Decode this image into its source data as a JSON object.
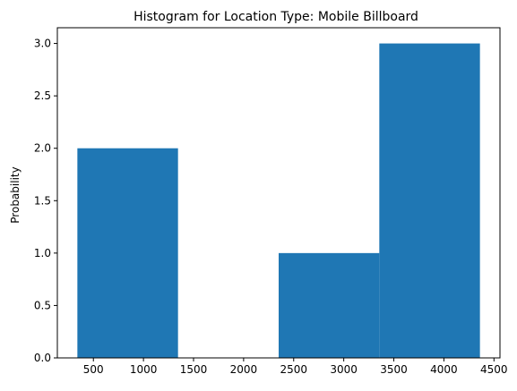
{
  "chart_data": {
    "type": "bar",
    "title": "Histogram for Location Type: Mobile Billboard",
    "xlabel": "",
    "ylabel": "Probability",
    "bins": [
      {
        "x0": 340,
        "x1": 1345,
        "value": 2
      },
      {
        "x0": 1345,
        "x1": 2350,
        "value": 0
      },
      {
        "x0": 2350,
        "x1": 3355,
        "value": 1
      },
      {
        "x0": 3355,
        "x1": 4360,
        "value": 3
      }
    ],
    "xlim": [
      140,
      4560
    ],
    "ylim": [
      0,
      3.15
    ],
    "xticks": [
      500,
      1000,
      1500,
      2000,
      2500,
      3000,
      3500,
      4000,
      4500
    ],
    "xtick_labels": [
      "500",
      "1000",
      "1500",
      "2000",
      "2500",
      "3000",
      "3500",
      "4000",
      "4500"
    ],
    "yticks": [
      0.0,
      0.5,
      1.0,
      1.5,
      2.0,
      2.5,
      3.0
    ],
    "ytick_labels": [
      "0.0",
      "0.5",
      "1.0",
      "1.5",
      "2.0",
      "2.5",
      "3.0"
    ],
    "bar_color": "#1f77b4",
    "grid": false,
    "legend": "none"
  }
}
